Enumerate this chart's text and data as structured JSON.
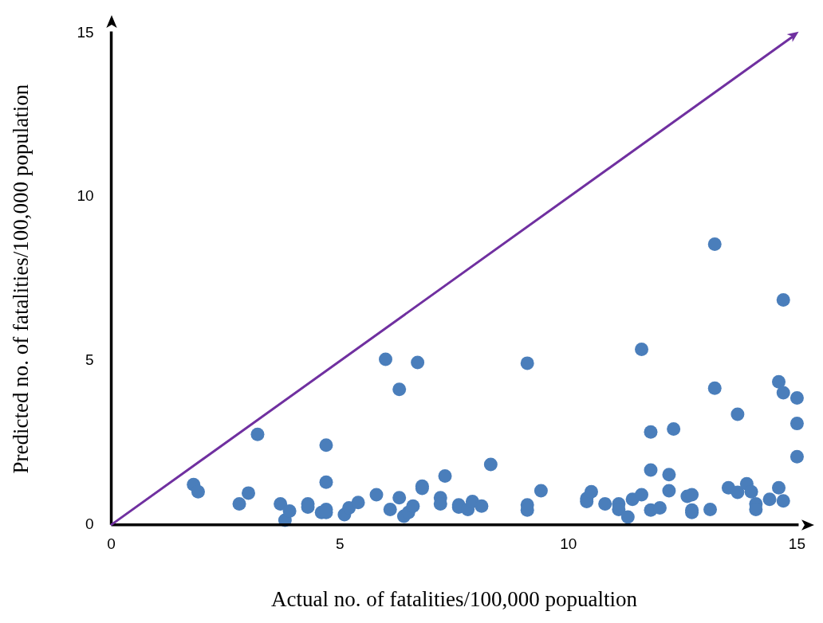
{
  "chart_data": {
    "type": "scatter",
    "xlabel": "Actual no. of fatalities/100,000 popualtion",
    "ylabel": "Predicted no. of fatalities/100,000 population",
    "xlim": [
      0,
      15
    ],
    "ylim": [
      0,
      15
    ],
    "xticks": [
      0,
      5,
      10,
      15
    ],
    "yticks": [
      0,
      5,
      10,
      15
    ],
    "grid": false,
    "legend": false,
    "marker": "circle",
    "series": [
      {
        "color": "#4a7ebb",
        "x": [
          1.8,
          1.9,
          2.8,
          3.0,
          3.2,
          3.7,
          3.8,
          3.9,
          4.3,
          4.3,
          4.6,
          4.7,
          4.7,
          4.7,
          4.7,
          5.1,
          5.2,
          5.4,
          5.8,
          6.0,
          6.1,
          6.3,
          6.3,
          6.4,
          6.5,
          6.6,
          6.7,
          6.8,
          6.8,
          7.2,
          7.2,
          7.3,
          7.6,
          7.6,
          7.8,
          7.9,
          8.1,
          8.3,
          9.1,
          9.1,
          9.1,
          9.4,
          10.4,
          10.4,
          10.5,
          10.8,
          11.1,
          11.1,
          11.3,
          11.4,
          11.6,
          11.6,
          11.8,
          11.8,
          11.8,
          12.0,
          12.2,
          12.2,
          12.3,
          12.6,
          12.7,
          12.7,
          12.7,
          13.1,
          13.2,
          13.2,
          13.5,
          13.7,
          13.7,
          13.9,
          14.0,
          14.1,
          14.1,
          14.4,
          14.6,
          14.6,
          14.7,
          14.7,
          14.7,
          15.0,
          15.0,
          15.0
        ],
        "values": [
          1.23,
          1.01,
          0.64,
          0.97,
          2.76,
          0.64,
          0.14,
          0.42,
          0.64,
          0.54,
          0.38,
          2.43,
          1.3,
          0.47,
          0.38,
          0.31,
          0.52,
          0.68,
          0.92,
          5.05,
          0.47,
          4.13,
          0.83,
          0.26,
          0.38,
          0.57,
          4.95,
          1.18,
          1.11,
          0.83,
          0.64,
          1.49,
          0.61,
          0.54,
          0.47,
          0.71,
          0.57,
          1.84,
          4.93,
          0.61,
          0.45,
          1.04,
          0.8,
          0.71,
          1.01,
          0.64,
          0.64,
          0.47,
          0.24,
          0.78,
          5.35,
          0.92,
          2.83,
          1.67,
          0.45,
          0.52,
          1.53,
          1.04,
          2.92,
          0.87,
          0.92,
          0.45,
          0.38,
          0.47,
          8.56,
          4.17,
          1.13,
          0.99,
          3.37,
          1.25,
          1.01,
          0.64,
          0.47,
          0.78,
          1.13,
          4.36,
          6.86,
          4.03,
          0.73,
          3.87,
          3.09,
          2.08
        ]
      }
    ]
  }
}
